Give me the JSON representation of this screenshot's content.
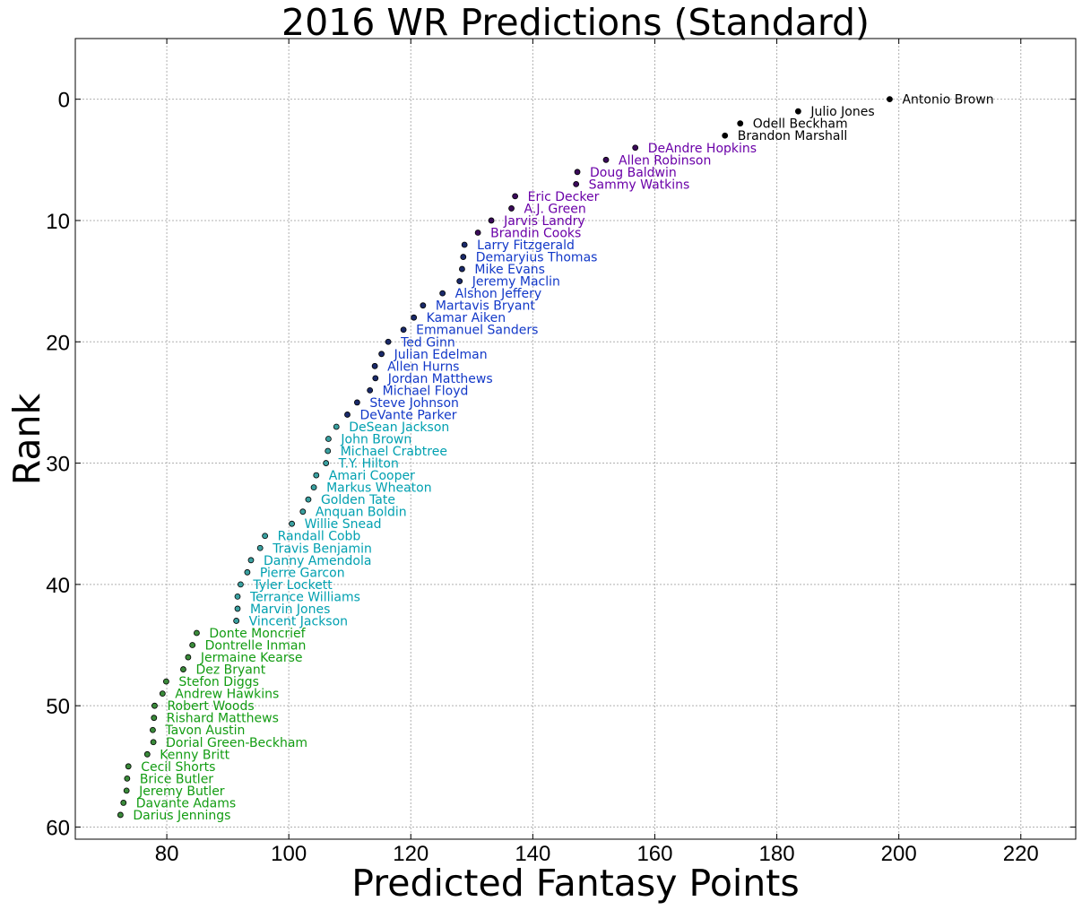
{
  "chart_data": {
    "type": "scatter",
    "title": "2016 WR Predictions (Standard)",
    "xlabel": "Predicted Fantasy Points",
    "ylabel": "Rank",
    "xlim": [
      65,
      229
    ],
    "ylim": [
      61,
      -5
    ],
    "y_inverted": true,
    "grid": true,
    "xticks": [
      80,
      100,
      120,
      140,
      160,
      180,
      200,
      220
    ],
    "yticks": [
      0,
      10,
      20,
      30,
      40,
      50,
      60
    ],
    "colors": {
      "black": "#000000",
      "purple": "#6a00a8",
      "blue": "#1238c8",
      "cyan": "#00a0b0",
      "green": "#129c12",
      "tier_fill": {
        "black": "#000000",
        "purple": "#3a0a5a",
        "blue": "#1a2a6a",
        "cyan": "#3aa0a0",
        "green": "#3a8a3a"
      }
    },
    "points": [
      {
        "name": "Antonio Brown",
        "x": 198.5,
        "y": 0,
        "tier": "black"
      },
      {
        "name": "Julio Jones",
        "x": 183.5,
        "y": 1,
        "tier": "black"
      },
      {
        "name": "Odell Beckham",
        "x": 174,
        "y": 2,
        "tier": "black"
      },
      {
        "name": "Brandon Marshall",
        "x": 171.5,
        "y": 3,
        "tier": "black"
      },
      {
        "name": "DeAndre Hopkins",
        "x": 156.8,
        "y": 4,
        "tier": "purple"
      },
      {
        "name": "Allen Robinson",
        "x": 152,
        "y": 5,
        "tier": "purple"
      },
      {
        "name": "Doug Baldwin",
        "x": 147.3,
        "y": 6,
        "tier": "purple"
      },
      {
        "name": "Sammy Watkins",
        "x": 147.1,
        "y": 7,
        "tier": "purple"
      },
      {
        "name": "Eric Decker",
        "x": 137.1,
        "y": 8,
        "tier": "purple"
      },
      {
        "name": "A.J. Green",
        "x": 136.5,
        "y": 9,
        "tier": "purple"
      },
      {
        "name": "Jarvis Landry",
        "x": 133.2,
        "y": 10,
        "tier": "purple"
      },
      {
        "name": "Brandin Cooks",
        "x": 131,
        "y": 11,
        "tier": "purple"
      },
      {
        "name": "Larry Fitzgerald",
        "x": 128.8,
        "y": 12,
        "tier": "blue"
      },
      {
        "name": "Demaryius Thomas",
        "x": 128.6,
        "y": 13,
        "tier": "blue"
      },
      {
        "name": "Mike Evans",
        "x": 128.4,
        "y": 14,
        "tier": "blue"
      },
      {
        "name": "Jeremy Maclin",
        "x": 128,
        "y": 15,
        "tier": "blue"
      },
      {
        "name": "Alshon Jeffery",
        "x": 125.2,
        "y": 16,
        "tier": "blue"
      },
      {
        "name": "Martavis Bryant",
        "x": 122,
        "y": 17,
        "tier": "blue"
      },
      {
        "name": "Kamar Aiken",
        "x": 120.5,
        "y": 18,
        "tier": "blue"
      },
      {
        "name": "Emmanuel Sanders",
        "x": 118.8,
        "y": 19,
        "tier": "blue"
      },
      {
        "name": "Ted Ginn",
        "x": 116.3,
        "y": 20,
        "tier": "blue"
      },
      {
        "name": "Julian Edelman",
        "x": 115.2,
        "y": 21,
        "tier": "blue"
      },
      {
        "name": "Allen Hurns",
        "x": 114.1,
        "y": 22,
        "tier": "blue"
      },
      {
        "name": "Jordan Matthews",
        "x": 114.2,
        "y": 23,
        "tier": "blue"
      },
      {
        "name": "Michael Floyd",
        "x": 113.3,
        "y": 24,
        "tier": "blue"
      },
      {
        "name": "Steve Johnson",
        "x": 111.2,
        "y": 25,
        "tier": "blue"
      },
      {
        "name": "DeVante Parker",
        "x": 109.6,
        "y": 26,
        "tier": "blue"
      },
      {
        "name": "DeSean Jackson",
        "x": 107.8,
        "y": 27,
        "tier": "cyan"
      },
      {
        "name": "John Brown",
        "x": 106.5,
        "y": 28,
        "tier": "cyan"
      },
      {
        "name": "Michael Crabtree",
        "x": 106.4,
        "y": 29,
        "tier": "cyan"
      },
      {
        "name": "T.Y. Hilton",
        "x": 106.1,
        "y": 30,
        "tier": "cyan"
      },
      {
        "name": "Amari Cooper",
        "x": 104.5,
        "y": 31,
        "tier": "cyan"
      },
      {
        "name": "Markus Wheaton",
        "x": 104.1,
        "y": 32,
        "tier": "cyan"
      },
      {
        "name": "Golden Tate",
        "x": 103.2,
        "y": 33,
        "tier": "cyan"
      },
      {
        "name": "Anquan Boldin",
        "x": 102.3,
        "y": 34,
        "tier": "cyan"
      },
      {
        "name": "Willie Snead",
        "x": 100.5,
        "y": 35,
        "tier": "cyan"
      },
      {
        "name": "Randall Cobb",
        "x": 96.1,
        "y": 36,
        "tier": "cyan"
      },
      {
        "name": "Travis Benjamin",
        "x": 95.3,
        "y": 37,
        "tier": "cyan"
      },
      {
        "name": "Danny Amendola",
        "x": 93.8,
        "y": 38,
        "tier": "cyan"
      },
      {
        "name": "Pierre Garcon",
        "x": 93.2,
        "y": 39,
        "tier": "cyan"
      },
      {
        "name": "Tyler Lockett",
        "x": 92.1,
        "y": 40,
        "tier": "cyan"
      },
      {
        "name": "Terrance Williams",
        "x": 91.6,
        "y": 41,
        "tier": "cyan"
      },
      {
        "name": "Marvin Jones",
        "x": 91.6,
        "y": 42,
        "tier": "cyan"
      },
      {
        "name": "Vincent Jackson",
        "x": 91.4,
        "y": 43,
        "tier": "cyan"
      },
      {
        "name": "Donte Moncrief",
        "x": 84.9,
        "y": 44,
        "tier": "green"
      },
      {
        "name": "Dontrelle Inman",
        "x": 84.2,
        "y": 45,
        "tier": "green"
      },
      {
        "name": "Jermaine Kearse",
        "x": 83.5,
        "y": 46,
        "tier": "green"
      },
      {
        "name": "Dez Bryant",
        "x": 82.7,
        "y": 47,
        "tier": "green"
      },
      {
        "name": "Stefon Diggs",
        "x": 79.9,
        "y": 48,
        "tier": "green"
      },
      {
        "name": "Andrew Hawkins",
        "x": 79.3,
        "y": 49,
        "tier": "green"
      },
      {
        "name": "Robert Woods",
        "x": 78,
        "y": 50,
        "tier": "green"
      },
      {
        "name": "Rishard Matthews",
        "x": 77.9,
        "y": 51,
        "tier": "green"
      },
      {
        "name": "Tavon Austin",
        "x": 77.7,
        "y": 52,
        "tier": "green"
      },
      {
        "name": "Dorial Green-Beckham",
        "x": 77.8,
        "y": 53,
        "tier": "green"
      },
      {
        "name": "Kenny Britt",
        "x": 76.8,
        "y": 54,
        "tier": "green"
      },
      {
        "name": "Cecil Shorts",
        "x": 73.7,
        "y": 55,
        "tier": "green"
      },
      {
        "name": "Brice Butler",
        "x": 73.5,
        "y": 56,
        "tier": "green"
      },
      {
        "name": "Jeremy Butler",
        "x": 73.4,
        "y": 57,
        "tier": "green"
      },
      {
        "name": "Davante Adams",
        "x": 72.9,
        "y": 58,
        "tier": "green"
      },
      {
        "name": "Darius Jennings",
        "x": 72.4,
        "y": 59,
        "tier": "green"
      }
    ]
  }
}
